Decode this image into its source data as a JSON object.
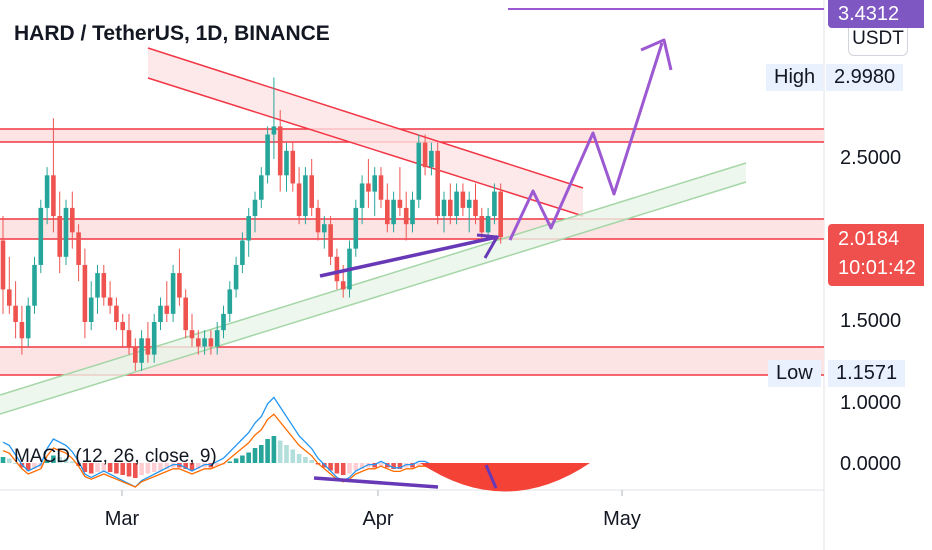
{
  "header": {
    "title": "HARD / TetherUS, 1D, BINANCE",
    "unit": "USDT"
  },
  "macd": {
    "label": "MACD (12, 26, close, 9)",
    "zero_label": "0.0000"
  },
  "price_axis": {
    "ticks": [
      "2.5000",
      "1.5000",
      "1.0000"
    ],
    "high_label": "High",
    "high_value": "2.9980",
    "low_label": "Low",
    "low_value": "1.1571",
    "target_value": "3.4312",
    "last_price": "2.0184",
    "countdown": "10:01:42"
  },
  "time_axis": {
    "ticks": [
      "Mar",
      "Apr",
      "May"
    ]
  },
  "colors": {
    "up": "#26a69a",
    "down": "#ef5350",
    "arrow": "#9c59d1",
    "divergence": "#6739b7",
    "support": "#a5d6a7",
    "resistance": "#f23645",
    "zone": "#fde4e4"
  },
  "chart_data": {
    "type": "candlestick",
    "title": "HARD / TetherUS, 1D, BINANCE",
    "x_ticks": [
      "Mar",
      "Apr",
      "May"
    ],
    "y_ticks": [
      1.0,
      1.5,
      2.5
    ],
    "ylim": [
      0.95,
      3.5
    ],
    "last_price": 2.0184,
    "high": 2.998,
    "low": 1.1571,
    "target": 3.4312,
    "ohlc": [
      [
        2.0,
        2.15,
        1.55,
        1.7
      ],
      [
        1.7,
        1.9,
        1.55,
        1.6
      ],
      [
        1.6,
        1.75,
        1.4,
        1.5
      ],
      [
        1.5,
        1.6,
        1.3,
        1.4
      ],
      [
        1.4,
        1.65,
        1.35,
        1.6
      ],
      [
        1.6,
        1.9,
        1.55,
        1.85
      ],
      [
        1.85,
        2.25,
        1.8,
        2.2
      ],
      [
        2.2,
        2.45,
        2.1,
        2.4
      ],
      [
        2.4,
        2.75,
        2.05,
        2.15
      ],
      [
        2.15,
        2.3,
        1.8,
        1.9
      ],
      [
        1.9,
        2.25,
        1.85,
        2.2
      ],
      [
        2.2,
        2.3,
        1.95,
        2.05
      ],
      [
        2.05,
        2.1,
        1.75,
        1.85
      ],
      [
        1.85,
        1.95,
        1.4,
        1.5
      ],
      [
        1.5,
        1.75,
        1.45,
        1.65
      ],
      [
        1.65,
        1.85,
        1.55,
        1.8
      ],
      [
        1.8,
        1.85,
        1.6,
        1.65
      ],
      [
        1.65,
        1.75,
        1.55,
        1.6
      ],
      [
        1.6,
        1.65,
        1.45,
        1.5
      ],
      [
        1.5,
        1.55,
        1.35,
        1.45
      ],
      [
        1.45,
        1.55,
        1.3,
        1.35
      ],
      [
        1.35,
        1.4,
        1.2,
        1.25
      ],
      [
        1.25,
        1.45,
        1.2,
        1.4
      ],
      [
        1.4,
        1.5,
        1.25,
        1.3
      ],
      [
        1.3,
        1.55,
        1.25,
        1.5
      ],
      [
        1.5,
        1.65,
        1.45,
        1.6
      ],
      [
        1.6,
        1.75,
        1.5,
        1.55
      ],
      [
        1.55,
        1.85,
        1.5,
        1.8
      ],
      [
        1.8,
        1.95,
        1.6,
        1.65
      ],
      [
        1.65,
        1.7,
        1.4,
        1.45
      ],
      [
        1.45,
        1.55,
        1.35,
        1.4
      ],
      [
        1.4,
        1.45,
        1.3,
        1.35
      ],
      [
        1.35,
        1.45,
        1.3,
        1.4
      ],
      [
        1.4,
        1.45,
        1.3,
        1.35
      ],
      [
        1.35,
        1.5,
        1.3,
        1.45
      ],
      [
        1.45,
        1.6,
        1.4,
        1.55
      ],
      [
        1.55,
        1.75,
        1.5,
        1.7
      ],
      [
        1.7,
        1.9,
        1.65,
        1.85
      ],
      [
        1.85,
        2.05,
        1.8,
        2.0
      ],
      [
        2.0,
        2.2,
        1.9,
        2.15
      ],
      [
        2.15,
        2.3,
        2.05,
        2.25
      ],
      [
        2.25,
        2.45,
        2.2,
        2.4
      ],
      [
        2.4,
        2.7,
        2.35,
        2.65
      ],
      [
        2.65,
        3.0,
        2.5,
        2.7
      ],
      [
        2.7,
        2.8,
        2.3,
        2.4
      ],
      [
        2.4,
        2.6,
        2.3,
        2.55
      ],
      [
        2.55,
        2.6,
        2.3,
        2.35
      ],
      [
        2.35,
        2.45,
        2.1,
        2.15
      ],
      [
        2.15,
        2.45,
        2.1,
        2.4
      ],
      [
        2.4,
        2.5,
        2.15,
        2.2
      ],
      [
        2.2,
        2.25,
        2.0,
        2.05
      ],
      [
        2.05,
        2.15,
        1.95,
        2.1
      ],
      [
        2.1,
        2.15,
        1.85,
        1.9
      ],
      [
        1.9,
        1.95,
        1.7,
        1.75
      ],
      [
        1.75,
        1.85,
        1.65,
        1.7
      ],
      [
        1.7,
        2.0,
        1.65,
        1.95
      ],
      [
        1.95,
        2.25,
        1.9,
        2.2
      ],
      [
        2.2,
        2.4,
        2.1,
        2.35
      ],
      [
        2.35,
        2.5,
        2.2,
        2.3
      ],
      [
        2.3,
        2.45,
        2.15,
        2.4
      ],
      [
        2.4,
        2.45,
        2.2,
        2.25
      ],
      [
        2.25,
        2.35,
        2.05,
        2.1
      ],
      [
        2.1,
        2.3,
        2.05,
        2.25
      ],
      [
        2.25,
        2.45,
        2.15,
        2.2
      ],
      [
        2.2,
        2.3,
        2.0,
        2.1
      ],
      [
        2.1,
        2.3,
        2.05,
        2.25
      ],
      [
        2.25,
        2.65,
        2.2,
        2.6
      ],
      [
        2.6,
        2.65,
        2.4,
        2.45
      ],
      [
        2.45,
        2.6,
        2.4,
        2.55
      ],
      [
        2.55,
        2.6,
        2.1,
        2.15
      ],
      [
        2.15,
        2.3,
        2.05,
        2.25
      ],
      [
        2.25,
        2.35,
        2.1,
        2.15
      ],
      [
        2.15,
        2.35,
        2.1,
        2.3
      ],
      [
        2.3,
        2.35,
        2.15,
        2.2
      ],
      [
        2.2,
        2.3,
        2.05,
        2.25
      ],
      [
        2.25,
        2.35,
        2.1,
        2.15
      ],
      [
        2.15,
        2.2,
        2.0,
        2.05
      ],
      [
        2.05,
        2.2,
        2.0,
        2.15
      ],
      [
        2.15,
        2.35,
        2.1,
        2.3
      ],
      [
        2.3,
        2.35,
        1.98,
        2.02
      ]
    ],
    "macd_hist": [
      0.04,
      0.03,
      0.0,
      -0.03,
      -0.05,
      -0.04,
      -0.03,
      0.02,
      0.05,
      0.04,
      0.03,
      0.01,
      -0.02,
      -0.06,
      -0.07,
      -0.06,
      -0.05,
      -0.06,
      -0.07,
      -0.08,
      -0.09,
      -0.1,
      -0.08,
      -0.07,
      -0.06,
      -0.05,
      -0.04,
      -0.03,
      -0.03,
      -0.04,
      -0.05,
      -0.04,
      -0.03,
      -0.03,
      -0.02,
      -0.01,
      0.01,
      0.03,
      0.05,
      0.07,
      0.1,
      0.12,
      0.16,
      0.18,
      0.15,
      0.12,
      0.09,
      0.06,
      0.04,
      0.02,
      -0.01,
      -0.03,
      -0.05,
      -0.07,
      -0.08,
      -0.07,
      -0.05,
      -0.04,
      -0.03,
      -0.03,
      -0.02,
      -0.03,
      -0.04,
      -0.04,
      -0.03,
      -0.03,
      -0.02,
      -0.02,
      -0.03,
      -0.04,
      -0.05,
      -0.06,
      -0.06,
      -0.05,
      -0.05,
      -0.06,
      -0.05,
      -0.04,
      -0.03,
      -0.05
    ]
  }
}
